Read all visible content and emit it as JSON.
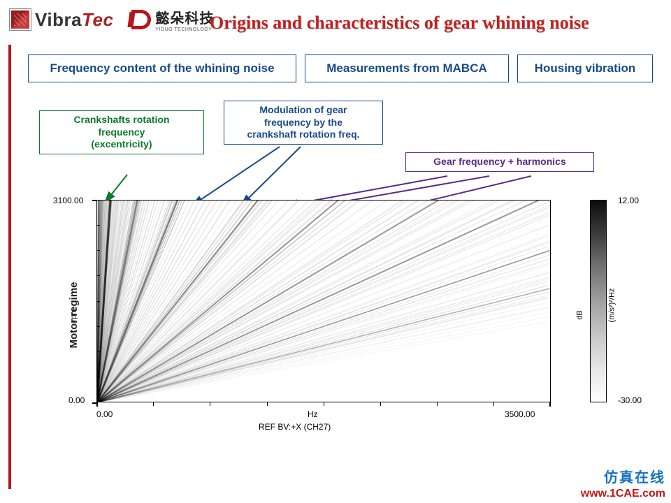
{
  "header": {
    "vibratec_a": "Vibra",
    "vibratec_b": "Tec",
    "yiduo_cn": "懿朵科技",
    "yiduo_en": "YIDUO TECHNOLOGY",
    "slide_title": "Origins and characteristics of gear whining noise"
  },
  "subboxes": {
    "a": "Frequency content of the whining noise",
    "b": "Measurements from MABCA",
    "c": "Housing vibration"
  },
  "callouts": {
    "green": "Crankshafts rotation\nfrequency\n(excentricity)",
    "blue": "Modulation of gear\nfrequency by the\ncrankshaft rotation freq.",
    "purple": "Gear frequency + harmonics"
  },
  "callout_colors": {
    "green": "#0a7a2a",
    "blue": "#164a8a",
    "purple": "#5a2a88"
  },
  "spectrogram": {
    "type": "order-spectrum-campbell",
    "x": {
      "label_center": "Hz",
      "min_label": "0.00",
      "max_label": "3500.00",
      "ref_label": "REF  BV:+X (CH27)",
      "xlim": [
        0,
        3500
      ],
      "ticks": 8
    },
    "y": {
      "outer_label": "Motor regime",
      "inner_label": "rpm",
      "min_label": "0.00",
      "max_label": "3100.00",
      "ylim": [
        0,
        3100
      ],
      "ticks": 8
    },
    "colorbar": {
      "unit_db": "dB",
      "unit_full": "(m/s²)²/Hz",
      "min_label": "-30.00",
      "max_label": "12.00",
      "range": [
        -30,
        12
      ],
      "gradient": [
        "#ffffff",
        "#e9e9e9",
        "#c9c9c9",
        "#a0a0a0",
        "#6f6f6f",
        "#3a3a3a",
        "#0c0c0c"
      ]
    },
    "plot_bg": "#ffffff",
    "order_lines": {
      "comment": "fan of diagonal order tracks emanating from origin; slope≈Hz per rpm",
      "count": 140,
      "slope_min_hz_per_rpm": 0.002,
      "slope_max_hz_per_rpm": 2.8,
      "base_alpha": 0.1,
      "strong_overlays": [
        {
          "slope": 0.033,
          "w": 3,
          "a": 0.55
        },
        {
          "slope": 0.1,
          "w": 2.5,
          "a": 0.45
        },
        {
          "slope": 0.2,
          "w": 2.5,
          "a": 0.5
        },
        {
          "slope": 0.4,
          "w": 2.2,
          "a": 0.45
        },
        {
          "slope": 0.6,
          "w": 2.0,
          "a": 0.42
        },
        {
          "slope": 0.85,
          "w": 1.8,
          "a": 0.4
        },
        {
          "slope": 1.1,
          "w": 1.8,
          "a": 0.38
        },
        {
          "slope": 1.5,
          "w": 1.6,
          "a": 0.34
        },
        {
          "slope": 2.0,
          "w": 1.6,
          "a": 0.3
        }
      ]
    }
  },
  "arrows": {
    "green": {
      "color": "#0a7a2a",
      "from": [
        182,
        250
      ],
      "to": [
        150,
        290
      ]
    },
    "blue_a": {
      "color": "#164a8a",
      "from": [
        400,
        210
      ],
      "to": [
        275,
        294
      ]
    },
    "blue_b": {
      "color": "#164a8a",
      "from": [
        430,
        210
      ],
      "to": [
        345,
        294
      ]
    },
    "purple_a": {
      "color": "#5a2a88",
      "from": [
        640,
        252
      ],
      "to": [
        410,
        294
      ]
    },
    "purple_b": {
      "color": "#5a2a88",
      "from": [
        700,
        252
      ],
      "to": [
        460,
        294
      ]
    },
    "purple_c": {
      "color": "#5a2a88",
      "from": [
        760,
        252
      ],
      "to": [
        560,
        300
      ]
    }
  },
  "watermark": {
    "cn": "仿真在线",
    "url": "www.1CAE.com"
  }
}
